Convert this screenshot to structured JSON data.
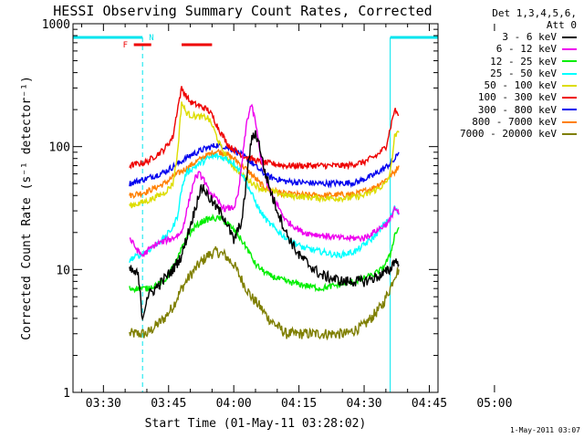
{
  "chart_data": {
    "type": "line",
    "title": "HESSI Observing Summary Count Rates, Corrected",
    "xlabel": "Start Time (01-May-11 03:28:02)",
    "ylabel": "Corrected Count Rate (s⁻¹ detector⁻¹)",
    "x_ticks": [
      "03:30",
      "03:45",
      "04:00",
      "04:15",
      "04:30",
      "04:45",
      "05:00"
    ],
    "y_ticks": [
      "1",
      "10",
      "100",
      "1000"
    ],
    "y_scale": "log",
    "ylim": [
      1,
      1000
    ],
    "xlim_minutes": [
      -7,
      77
    ],
    "grid": false,
    "legend_position": "right",
    "legend_header": [
      "Det 1,3,4,5,6,",
      "Att 0"
    ],
    "flare_label": "F",
    "night_label": "N",
    "flags": {
      "night": {
        "color": "#00e5ee",
        "segments": [
          [
            -7,
            9
          ],
          [
            66,
            77
          ]
        ]
      },
      "flare": {
        "color": "#ee0000",
        "segments": [
          [
            7,
            11
          ],
          [
            18,
            25
          ]
        ]
      }
    },
    "series": [
      {
        "name": "3 - 6 keV",
        "color": "#000000",
        "points": [
          [
            6,
            10
          ],
          [
            8,
            9
          ],
          [
            9,
            4
          ],
          [
            10,
            6
          ],
          [
            12,
            7
          ],
          [
            16,
            10
          ],
          [
            18,
            13
          ],
          [
            20,
            23
          ],
          [
            21,
            30
          ],
          [
            22,
            42
          ],
          [
            23,
            47
          ],
          [
            24,
            40
          ],
          [
            26,
            32
          ],
          [
            28,
            26
          ],
          [
            30,
            17
          ],
          [
            32,
            26
          ],
          [
            33,
            58
          ],
          [
            34,
            110
          ],
          [
            35,
            130
          ],
          [
            36,
            100
          ],
          [
            37,
            65
          ],
          [
            39,
            38
          ],
          [
            42,
            20
          ],
          [
            45,
            13
          ],
          [
            50,
            9
          ],
          [
            55,
            8
          ],
          [
            60,
            8
          ],
          [
            64,
            9
          ],
          [
            66,
            10
          ],
          [
            67,
            12
          ],
          [
            68,
            11
          ]
        ]
      },
      {
        "name": "6 - 12 keV",
        "color": "#ee00ee",
        "points": [
          [
            6,
            18
          ],
          [
            8,
            14
          ],
          [
            9,
            13
          ],
          [
            10,
            14
          ],
          [
            12,
            16
          ],
          [
            16,
            18
          ],
          [
            18,
            20
          ],
          [
            20,
            40
          ],
          [
            21,
            55
          ],
          [
            22,
            60
          ],
          [
            23,
            55
          ],
          [
            24,
            45
          ],
          [
            26,
            37
          ],
          [
            28,
            31
          ],
          [
            30,
            32
          ],
          [
            31,
            40
          ],
          [
            32,
            80
          ],
          [
            33,
            160
          ],
          [
            34,
            220
          ],
          [
            35,
            160
          ],
          [
            36,
            90
          ],
          [
            38,
            45
          ],
          [
            42,
            25
          ],
          [
            46,
            20
          ],
          [
            50,
            19
          ],
          [
            55,
            18
          ],
          [
            60,
            18
          ],
          [
            64,
            22
          ],
          [
            66,
            25
          ],
          [
            67,
            32
          ],
          [
            68,
            28
          ]
        ]
      },
      {
        "name": "12 - 25 keV",
        "color": "#00ee00",
        "points": [
          [
            6,
            7
          ],
          [
            10,
            7
          ],
          [
            14,
            8
          ],
          [
            17,
            12
          ],
          [
            19,
            18
          ],
          [
            21,
            22
          ],
          [
            23,
            25
          ],
          [
            25,
            26
          ],
          [
            27,
            26
          ],
          [
            29,
            23
          ],
          [
            31,
            19
          ],
          [
            33,
            15
          ],
          [
            35,
            11
          ],
          [
            38,
            9
          ],
          [
            42,
            8
          ],
          [
            50,
            7
          ],
          [
            58,
            8
          ],
          [
            62,
            9
          ],
          [
            64,
            10
          ],
          [
            66,
            13
          ],
          [
            67,
            19
          ],
          [
            68,
            22
          ]
        ]
      },
      {
        "name": "25 - 50 keV",
        "color": "#00ffff",
        "points": [
          [
            6,
            12
          ],
          [
            10,
            14
          ],
          [
            14,
            18
          ],
          [
            16,
            22
          ],
          [
            17,
            27
          ],
          [
            18,
            45
          ],
          [
            19,
            60
          ],
          [
            20,
            65
          ],
          [
            22,
            72
          ],
          [
            24,
            80
          ],
          [
            26,
            84
          ],
          [
            28,
            80
          ],
          [
            30,
            74
          ],
          [
            32,
            60
          ],
          [
            34,
            42
          ],
          [
            36,
            30
          ],
          [
            38,
            24
          ],
          [
            42,
            18
          ],
          [
            46,
            15
          ],
          [
            50,
            14
          ],
          [
            54,
            13
          ],
          [
            58,
            14
          ],
          [
            62,
            18
          ],
          [
            64,
            22
          ],
          [
            66,
            26
          ],
          [
            67,
            32
          ],
          [
            68,
            28
          ]
        ]
      },
      {
        "name": "50 - 100 keV",
        "color": "#dddd00",
        "points": [
          [
            6,
            33
          ],
          [
            10,
            36
          ],
          [
            14,
            42
          ],
          [
            16,
            50
          ],
          [
            17,
            85
          ],
          [
            18,
            230
          ],
          [
            19,
            190
          ],
          [
            20,
            180
          ],
          [
            22,
            175
          ],
          [
            24,
            172
          ],
          [
            25,
            150
          ],
          [
            27,
            100
          ],
          [
            29,
            75
          ],
          [
            32,
            58
          ],
          [
            36,
            46
          ],
          [
            42,
            40
          ],
          [
            50,
            38
          ],
          [
            56,
            38
          ],
          [
            60,
            40
          ],
          [
            63,
            45
          ],
          [
            65,
            50
          ],
          [
            66,
            60
          ],
          [
            67,
            120
          ],
          [
            68,
            130
          ]
        ]
      },
      {
        "name": "100 - 300 keV",
        "color": "#ee0000",
        "points": [
          [
            6,
            70
          ],
          [
            10,
            75
          ],
          [
            14,
            95
          ],
          [
            16,
            120
          ],
          [
            17,
            200
          ],
          [
            18,
            300
          ],
          [
            19,
            260
          ],
          [
            20,
            230
          ],
          [
            22,
            215
          ],
          [
            24,
            200
          ],
          [
            25,
            180
          ],
          [
            27,
            130
          ],
          [
            29,
            100
          ],
          [
            32,
            85
          ],
          [
            36,
            75
          ],
          [
            42,
            70
          ],
          [
            50,
            70
          ],
          [
            56,
            70
          ],
          [
            60,
            75
          ],
          [
            63,
            85
          ],
          [
            65,
            100
          ],
          [
            66,
            140
          ],
          [
            67,
            200
          ],
          [
            68,
            180
          ]
        ]
      },
      {
        "name": "300 - 800 keV",
        "color": "#0000ee",
        "points": [
          [
            6,
            50
          ],
          [
            10,
            55
          ],
          [
            14,
            62
          ],
          [
            17,
            72
          ],
          [
            20,
            85
          ],
          [
            23,
            95
          ],
          [
            26,
            103
          ],
          [
            28,
            100
          ],
          [
            30,
            94
          ],
          [
            32,
            85
          ],
          [
            34,
            75
          ],
          [
            36,
            64
          ],
          [
            38,
            57
          ],
          [
            42,
            52
          ],
          [
            50,
            50
          ],
          [
            58,
            51
          ],
          [
            62,
            58
          ],
          [
            65,
            68
          ],
          [
            67,
            78
          ],
          [
            68,
            90
          ]
        ]
      },
      {
        "name": "800 - 7000 keV",
        "color": "#ff7f00",
        "points": [
          [
            6,
            40
          ],
          [
            10,
            43
          ],
          [
            14,
            50
          ],
          [
            17,
            60
          ],
          [
            20,
            70
          ],
          [
            23,
            82
          ],
          [
            26,
            92
          ],
          [
            28,
            88
          ],
          [
            30,
            80
          ],
          [
            32,
            70
          ],
          [
            34,
            60
          ],
          [
            36,
            50
          ],
          [
            38,
            45
          ],
          [
            42,
            41
          ],
          [
            50,
            40
          ],
          [
            58,
            41
          ],
          [
            62,
            46
          ],
          [
            65,
            54
          ],
          [
            67,
            62
          ],
          [
            68,
            70
          ]
        ]
      },
      {
        "name": "7000 - 20000 keV",
        "color": "#7f7f00",
        "points": [
          [
            6,
            3
          ],
          [
            10,
            3
          ],
          [
            14,
            4
          ],
          [
            16,
            5
          ],
          [
            18,
            7
          ],
          [
            20,
            9
          ],
          [
            22,
            11
          ],
          [
            24,
            13
          ],
          [
            26,
            14
          ],
          [
            28,
            13
          ],
          [
            30,
            11
          ],
          [
            32,
            8
          ],
          [
            34,
            6
          ],
          [
            36,
            5
          ],
          [
            38,
            4
          ],
          [
            42,
            3
          ],
          [
            46,
            3
          ],
          [
            50,
            3
          ],
          [
            56,
            3
          ],
          [
            60,
            3.5
          ],
          [
            64,
            5
          ],
          [
            66,
            7
          ],
          [
            67,
            9
          ],
          [
            68,
            10
          ]
        ]
      }
    ]
  },
  "timestamp": "1-May-2011 03:07"
}
